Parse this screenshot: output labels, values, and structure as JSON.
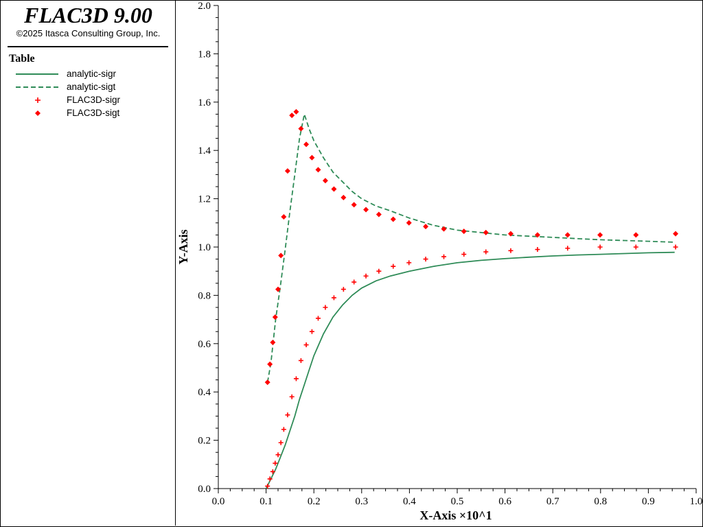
{
  "app": {
    "title": "FLAC3D 9.00",
    "copyright": "©2025 Itasca Consulting Group, Inc."
  },
  "legend": {
    "title": "Table",
    "items": [
      {
        "label": "analytic-sigr",
        "style": "solid-line",
        "color": "#2e8b57"
      },
      {
        "label": "analytic-sigt",
        "style": "dashed-line",
        "color": "#2e8b57"
      },
      {
        "label": "FLAC3D-sigr",
        "style": "plus-marker",
        "color": "#ff0000"
      },
      {
        "label": "FLAC3D-sigt",
        "style": "diamond-marker",
        "color": "#ff0000"
      }
    ]
  },
  "chart_data": {
    "type": "line",
    "xlabel": "X-Axis ×10^1",
    "ylabel": "Y-Axis",
    "xlim": [
      0,
      1.0
    ],
    "ylim": [
      0,
      2.0
    ],
    "x_ticks": [
      "0.0",
      "0.1",
      "0.2",
      "0.3",
      "0.4",
      "0.5",
      "0.6",
      "0.7",
      "0.8",
      "0.9",
      "1.0"
    ],
    "y_ticks": [
      "0.0",
      "0.2",
      "0.4",
      "0.6",
      "0.8",
      "1.0",
      "1.2",
      "1.4",
      "1.6",
      "1.8",
      "2.0"
    ],
    "grid": false,
    "legend_position": "left-panel",
    "series": [
      {
        "name": "analytic-sigr",
        "kind": "line",
        "dash": "solid",
        "color": "#2e8b57",
        "x": [
          0.1,
          0.11,
          0.12,
          0.13,
          0.14,
          0.15,
          0.16,
          0.17,
          0.18,
          0.19,
          0.2,
          0.22,
          0.24,
          0.26,
          0.28,
          0.3,
          0.33,
          0.36,
          0.4,
          0.45,
          0.5,
          0.55,
          0.6,
          0.65,
          0.7,
          0.75,
          0.8,
          0.85,
          0.9,
          0.955
        ],
        "y": [
          0.0,
          0.04,
          0.08,
          0.13,
          0.18,
          0.24,
          0.3,
          0.37,
          0.43,
          0.49,
          0.55,
          0.64,
          0.71,
          0.76,
          0.8,
          0.83,
          0.86,
          0.88,
          0.9,
          0.92,
          0.935,
          0.945,
          0.952,
          0.958,
          0.963,
          0.967,
          0.97,
          0.973,
          0.976,
          0.978
        ]
      },
      {
        "name": "analytic-sigt",
        "kind": "line",
        "dash": "dashed",
        "color": "#2e8b57",
        "x": [
          0.103,
          0.11,
          0.12,
          0.13,
          0.14,
          0.15,
          0.16,
          0.17,
          0.18,
          0.19,
          0.2,
          0.22,
          0.24,
          0.26,
          0.28,
          0.3,
          0.33,
          0.36,
          0.4,
          0.45,
          0.5,
          0.55,
          0.6,
          0.65,
          0.7,
          0.75,
          0.8,
          0.85,
          0.9,
          0.955
        ],
        "y": [
          0.44,
          0.52,
          0.7,
          0.84,
          0.99,
          1.15,
          1.3,
          1.45,
          1.55,
          1.49,
          1.44,
          1.37,
          1.31,
          1.27,
          1.23,
          1.2,
          1.17,
          1.15,
          1.12,
          1.09,
          1.07,
          1.06,
          1.05,
          1.045,
          1.04,
          1.035,
          1.03,
          1.027,
          1.024,
          1.02
        ]
      },
      {
        "name": "FLAC3D-sigr",
        "kind": "scatter",
        "marker": "plus",
        "color": "#ff0000",
        "x": [
          0.103,
          0.108,
          0.114,
          0.119,
          0.125,
          0.131,
          0.137,
          0.145,
          0.154,
          0.163,
          0.173,
          0.184,
          0.196,
          0.209,
          0.224,
          0.242,
          0.262,
          0.284,
          0.309,
          0.336,
          0.366,
          0.399,
          0.434,
          0.472,
          0.514,
          0.56,
          0.612,
          0.668,
          0.731,
          0.799,
          0.874,
          0.957
        ],
        "y": [
          0.01,
          0.04,
          0.07,
          0.105,
          0.14,
          0.19,
          0.245,
          0.305,
          0.38,
          0.455,
          0.53,
          0.595,
          0.65,
          0.705,
          0.75,
          0.79,
          0.825,
          0.855,
          0.88,
          0.9,
          0.92,
          0.935,
          0.95,
          0.96,
          0.97,
          0.98,
          0.985,
          0.99,
          0.995,
          1.0,
          1.0,
          1.0
        ]
      },
      {
        "name": "FLAC3D-sigt",
        "kind": "scatter",
        "marker": "diamond",
        "color": "#ff0000",
        "x": [
          0.103,
          0.108,
          0.114,
          0.119,
          0.125,
          0.131,
          0.137,
          0.145,
          0.154,
          0.163,
          0.173,
          0.184,
          0.196,
          0.209,
          0.224,
          0.242,
          0.262,
          0.284,
          0.309,
          0.336,
          0.366,
          0.399,
          0.434,
          0.472,
          0.514,
          0.56,
          0.612,
          0.668,
          0.731,
          0.799,
          0.874,
          0.957
        ],
        "y": [
          0.44,
          0.515,
          0.605,
          0.71,
          0.825,
          0.965,
          1.125,
          1.315,
          1.545,
          1.56,
          1.49,
          1.425,
          1.37,
          1.32,
          1.275,
          1.24,
          1.205,
          1.175,
          1.155,
          1.135,
          1.115,
          1.1,
          1.085,
          1.075,
          1.065,
          1.06,
          1.055,
          1.05,
          1.05,
          1.05,
          1.05,
          1.055
        ]
      }
    ]
  }
}
